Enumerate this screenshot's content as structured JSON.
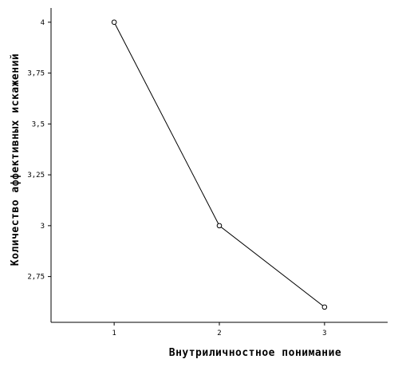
{
  "chart_data": {
    "type": "line",
    "xlabel": "Внутриличностное понимание",
    "ylabel": "Количество аффективных искажений",
    "x": [
      1,
      2,
      3
    ],
    "series": [
      {
        "values": [
          4,
          3,
          2.6
        ]
      }
    ],
    "x_ticks": [
      "1",
      "2",
      "3"
    ],
    "y_ticks": [
      {
        "value": 2.75,
        "label": "2,75"
      },
      {
        "value": 3,
        "label": "3"
      },
      {
        "value": 3.25,
        "label": "3,25"
      },
      {
        "value": 3.5,
        "label": "3,5"
      },
      {
        "value": 3.75,
        "label": "3,75"
      },
      {
        "value": 4,
        "label": "4"
      }
    ],
    "xlim": [
      0.4,
      3.6
    ],
    "ylim": [
      2.525,
      4.07
    ],
    "grid": false,
    "marker": "open-circle",
    "line_color": "#000000"
  }
}
